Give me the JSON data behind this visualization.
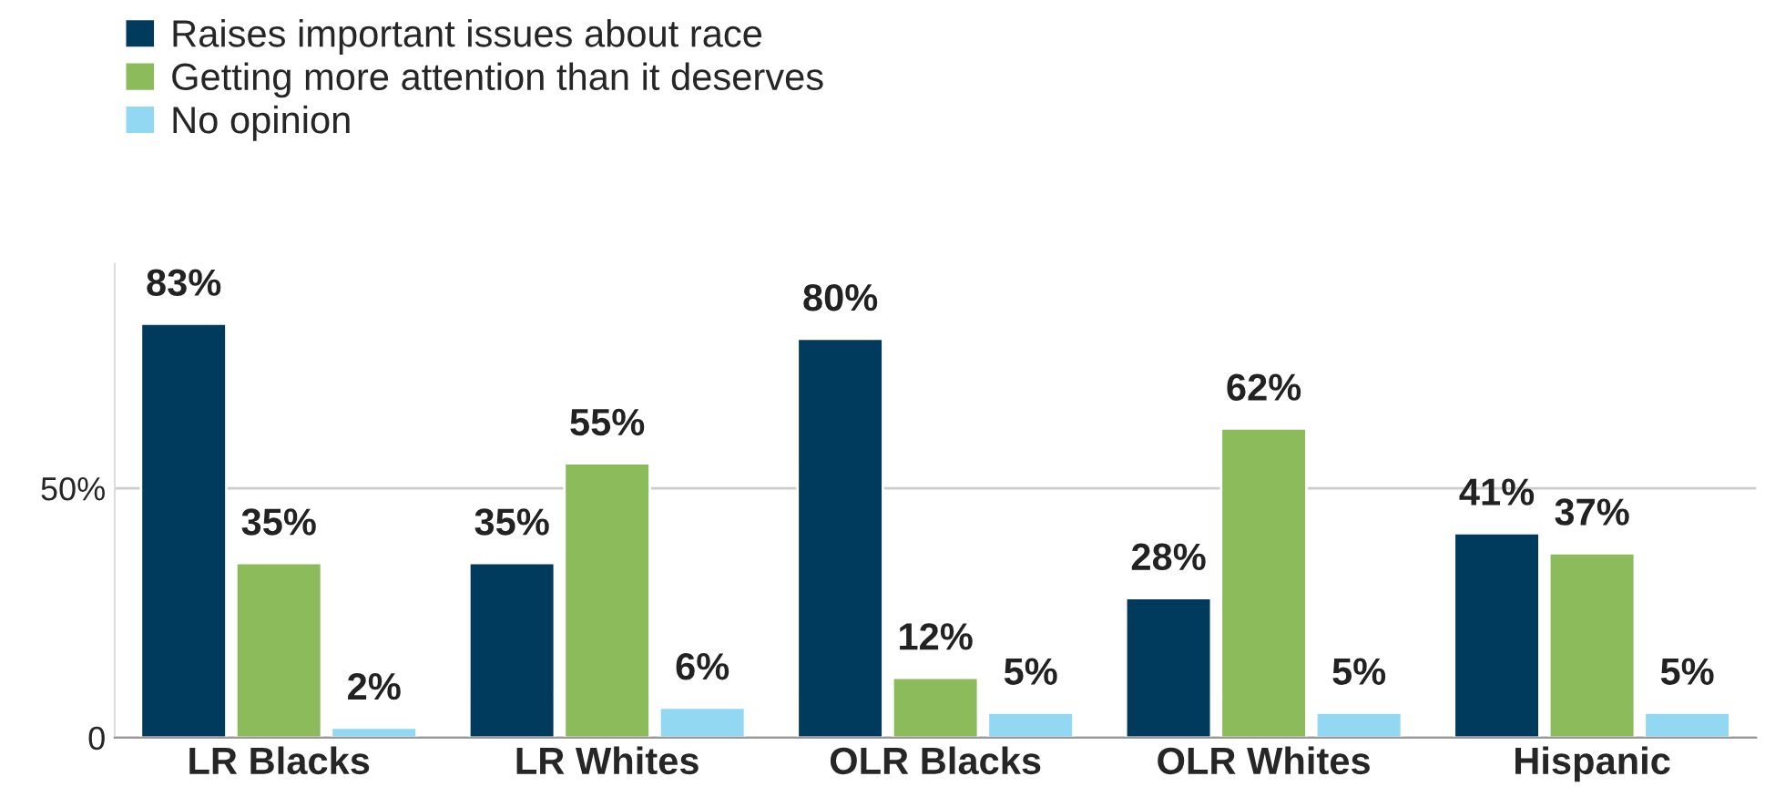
{
  "chart_data": {
    "type": "bar",
    "categories": [
      "LR Blacks",
      "LR Whites",
      "OLR Blacks",
      "OLR Whites",
      "Hispanic"
    ],
    "series": [
      {
        "name": "Raises important issues about race",
        "color": "#003a5c",
        "values": [
          83,
          35,
          80,
          28,
          41
        ],
        "value_labels": [
          "83%",
          "35%",
          "80%",
          "28%",
          "41%"
        ]
      },
      {
        "name": "Getting more attention than it deserves",
        "color": "#8cbb5c",
        "values": [
          35,
          55,
          12,
          62,
          37
        ],
        "value_labels": [
          "35%",
          "55%",
          "12%",
          "62%",
          "37%"
        ]
      },
      {
        "name": "No opinion",
        "color": "#92d8f2",
        "values": [
          2,
          6,
          5,
          5,
          5
        ],
        "value_labels": [
          "2%",
          "6%",
          "5%",
          "5%",
          "5%"
        ]
      }
    ],
    "ylim": [
      0,
      95
    ],
    "yticks": [
      0,
      {
        "value": 50,
        "label": "50%"
      }
    ],
    "grid": "y",
    "legend": "top left"
  }
}
